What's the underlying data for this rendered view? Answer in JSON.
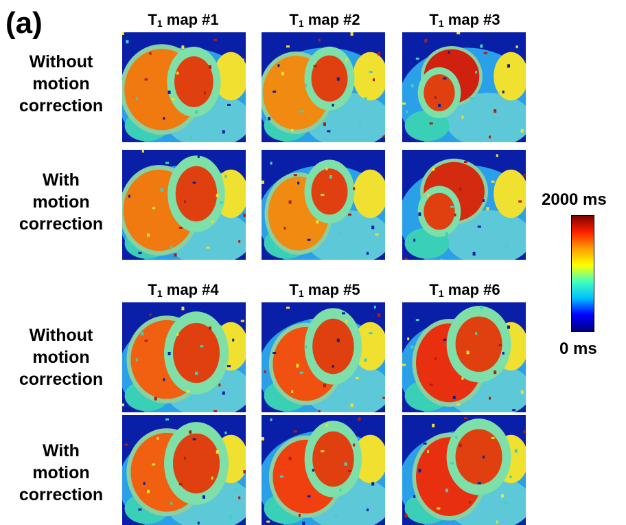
{
  "panel_label": "(a)",
  "column_titles_top": [
    {
      "base": "T",
      "sub": "1",
      "rest": " map #1"
    },
    {
      "base": "T",
      "sub": "1",
      "rest": " map #2"
    },
    {
      "base": "T",
      "sub": "1",
      "rest": " map #3"
    }
  ],
  "column_titles_bottom": [
    {
      "base": "T",
      "sub": "1",
      "rest": " map #4"
    },
    {
      "base": "T",
      "sub": "1",
      "rest": " map #5"
    },
    {
      "base": "T",
      "sub": "1",
      "rest": " map #6"
    }
  ],
  "row_labels": [
    {
      "line1": "Without",
      "line2": "motion",
      "line3": "correction"
    },
    {
      "line1": "With",
      "line2": "motion",
      "line3": "correction"
    },
    {
      "line1": "Without",
      "line2": "motion",
      "line3": "correction"
    },
    {
      "line1": "With",
      "line2": "motion",
      "line3": "correction"
    }
  ],
  "colorbar": {
    "max_label": "2000 ms",
    "min_label": "0 ms",
    "colors": [
      "#00007f",
      "#0000ff",
      "#00bfff",
      "#40ffbf",
      "#ffff00",
      "#ff9f00",
      "#ff2000",
      "#7f0000"
    ]
  }
}
